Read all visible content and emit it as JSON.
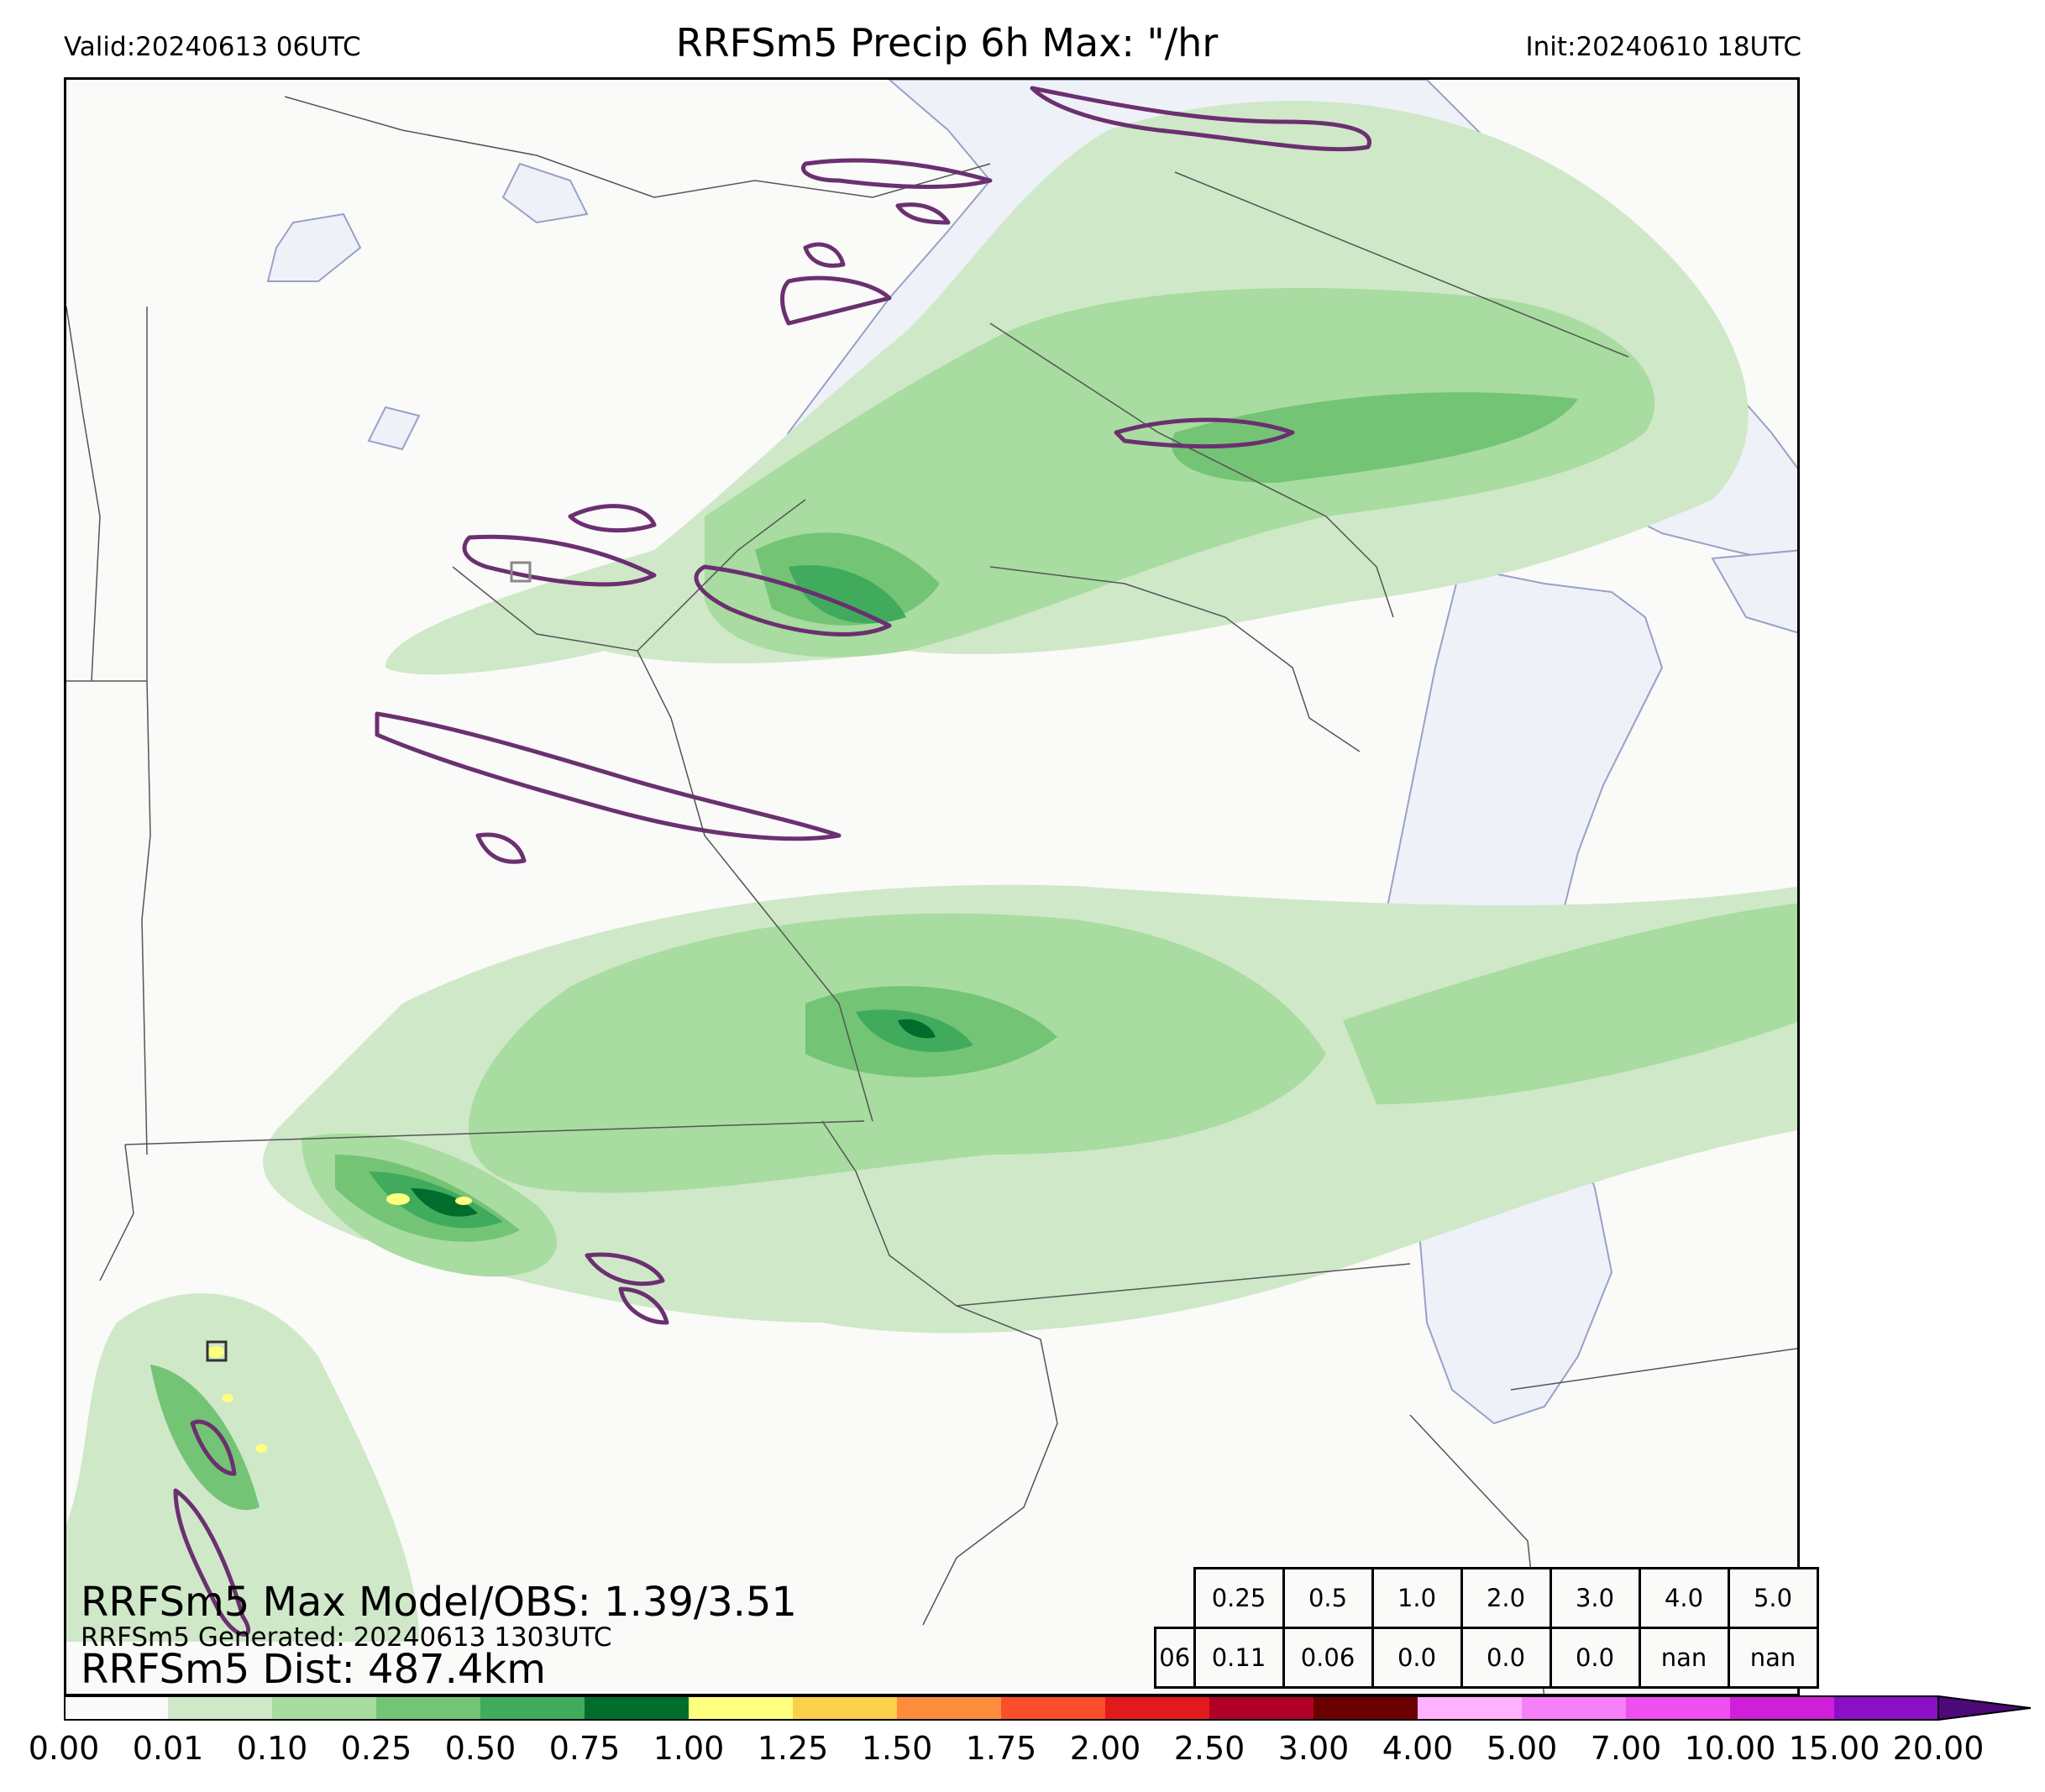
{
  "header": {
    "valid": "Valid:20240613 06UTC",
    "title": "RRFSm5 Precip 6h Max: \"/hr",
    "init": "Init:20240610 18UTC"
  },
  "annotations": {
    "max_model_obs": "RRFSm5 Max Model/OBS: 1.39/3.51",
    "generated": "RRFSm5 Generated: 20240613 1303UTC",
    "dist": "RRFSm5 Dist: 487.4km"
  },
  "stats_table": {
    "thresholds": [
      "0.25",
      "0.5",
      "1.0",
      "2.0",
      "3.0",
      "4.0",
      "5.0"
    ],
    "row_label": "06",
    "values": [
      "0.11",
      "0.06",
      "0.0",
      "0.0",
      "0.0",
      "nan",
      "nan"
    ]
  },
  "colorbar": {
    "ticks": [
      "0.00",
      "0.01",
      "0.10",
      "0.25",
      "0.50",
      "0.75",
      "1.00",
      "1.25",
      "1.50",
      "1.75",
      "2.00",
      "2.50",
      "3.00",
      "4.00",
      "5.00",
      "7.00",
      "10.00",
      "15.00",
      "20.00"
    ],
    "colors": [
      "#fafaf8",
      "#cfe8c8",
      "#a8dca0",
      "#74c476",
      "#41ab5d",
      "#006d2c",
      "#ffff80",
      "#fdd049",
      "#fd8d3c",
      "#fc4e2a",
      "#e31a1c",
      "#b10026",
      "#6a0000",
      "#ffb3ff",
      "#f77ff7",
      "#f04ff0",
      "#d11fd9",
      "#8b0fc7"
    ],
    "extend_color": "#4b0a78"
  },
  "colors": {
    "obs_contour": "#6b3070",
    "lake": "#eef1f8",
    "lake_edge": "#9aa0c8",
    "border": "#555555"
  }
}
